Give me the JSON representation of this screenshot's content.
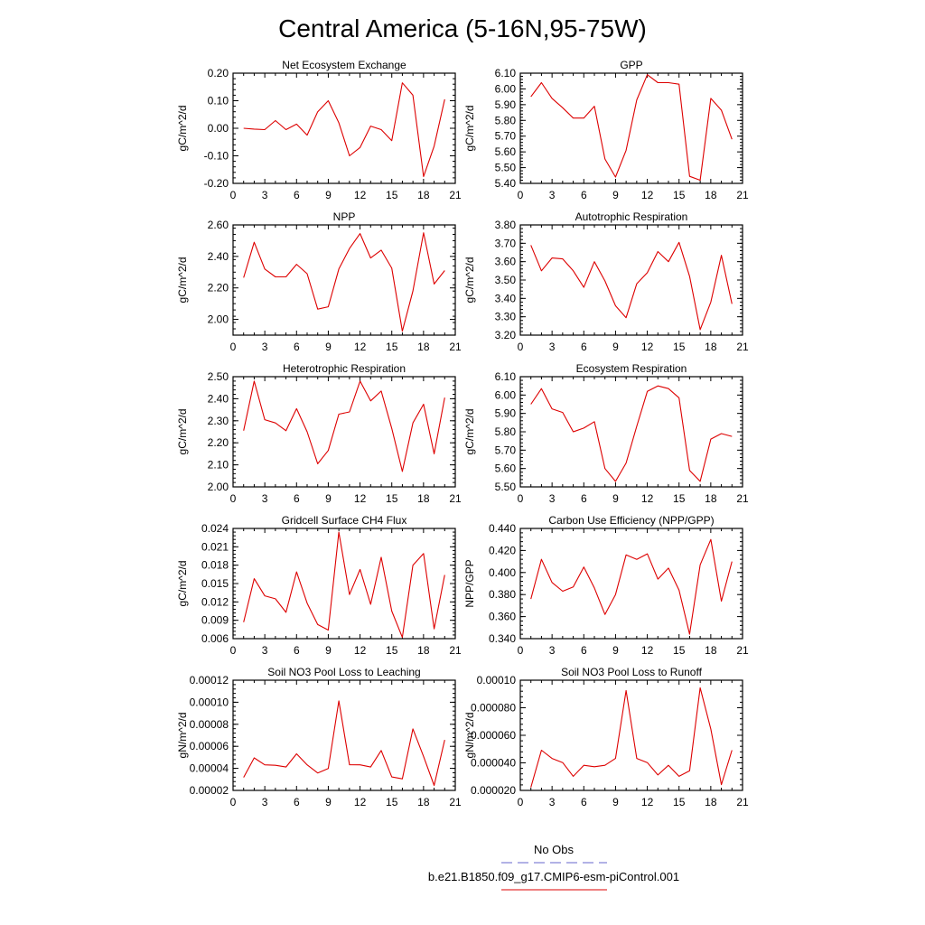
{
  "figure_title": "Central America (5-16N,95-75W)",
  "legend": {
    "obs_label": "No Obs",
    "obs_color": "#6666cc",
    "model_label": "b.e21.B1850.f09_g17.CMIP6-esm-piControl.001",
    "model_color": "#dd0000"
  },
  "chart_data": [
    {
      "type": "line",
      "title": "Net Ecosystem Exchange",
      "ylabel": "gC/m^2/d",
      "xlim": [
        0,
        21
      ],
      "ylim": [
        -0.2,
        0.2
      ],
      "xticks": [
        "0",
        "3",
        "6",
        "9",
        "12",
        "15",
        "18",
        "21"
      ],
      "yticks": [
        "-0.20",
        "-0.10",
        "0.00",
        "0.10",
        "0.20"
      ],
      "series": [
        {
          "x": [
            1,
            2,
            3,
            4,
            5,
            6,
            7,
            8,
            9,
            10,
            11,
            12,
            13,
            14,
            15,
            16,
            17,
            18,
            19,
            20
          ],
          "values": [
            0.0,
            -0.003,
            -0.005,
            0.028,
            -0.005,
            0.015,
            -0.025,
            0.06,
            0.1,
            0.02,
            -0.1,
            -0.07,
            0.008,
            -0.005,
            -0.045,
            0.165,
            0.12,
            -0.175,
            -0.065,
            0.105
          ]
        }
      ]
    },
    {
      "type": "line",
      "title": "GPP",
      "ylabel": "gC/m^2/d",
      "xlim": [
        0,
        21
      ],
      "ylim": [
        5.4,
        6.1
      ],
      "xticks": [
        "0",
        "3",
        "6",
        "9",
        "12",
        "15",
        "18",
        "21"
      ],
      "yticks": [
        "5.40",
        "5.50",
        "5.60",
        "5.70",
        "5.80",
        "5.90",
        "6.00",
        "6.10"
      ],
      "series": [
        {
          "x": [
            1,
            2,
            3,
            4,
            5,
            6,
            7,
            8,
            9,
            10,
            11,
            12,
            13,
            14,
            15,
            16,
            17,
            18,
            19,
            20
          ],
          "values": [
            5.95,
            6.04,
            5.94,
            5.88,
            5.815,
            5.815,
            5.89,
            5.555,
            5.44,
            5.61,
            5.93,
            6.09,
            6.04,
            6.04,
            6.03,
            5.445,
            5.42,
            5.94,
            5.865,
            5.68
          ]
        }
      ]
    },
    {
      "type": "line",
      "title": "NPP",
      "ylabel": "gC/m^2/d",
      "xlim": [
        0,
        21
      ],
      "ylim": [
        1.9,
        2.6
      ],
      "xticks": [
        "0",
        "3",
        "6",
        "9",
        "12",
        "15",
        "18",
        "21"
      ],
      "yticks": [
        "2.00",
        "2.20",
        "2.40",
        "2.60"
      ],
      "series": [
        {
          "x": [
            1,
            2,
            3,
            4,
            5,
            6,
            7,
            8,
            9,
            10,
            11,
            12,
            13,
            14,
            15,
            16,
            17,
            18,
            19,
            20
          ],
          "values": [
            2.265,
            2.49,
            2.32,
            2.27,
            2.27,
            2.35,
            2.29,
            2.065,
            2.08,
            2.32,
            2.45,
            2.545,
            2.39,
            2.44,
            2.325,
            1.925,
            2.18,
            2.55,
            2.225,
            2.31
          ]
        }
      ]
    },
    {
      "type": "line",
      "title": "Autotrophic Respiration",
      "ylabel": "gC/m^2/d",
      "xlim": [
        0,
        21
      ],
      "ylim": [
        3.2,
        3.8
      ],
      "xticks": [
        "0",
        "3",
        "6",
        "9",
        "12",
        "15",
        "18",
        "21"
      ],
      "yticks": [
        "3.20",
        "3.30",
        "3.40",
        "3.50",
        "3.60",
        "3.70",
        "3.80"
      ],
      "series": [
        {
          "x": [
            1,
            2,
            3,
            4,
            5,
            6,
            7,
            8,
            9,
            10,
            11,
            12,
            13,
            14,
            15,
            16,
            17,
            18,
            19,
            20
          ],
          "values": [
            3.69,
            3.55,
            3.62,
            3.615,
            3.55,
            3.46,
            3.6,
            3.495,
            3.36,
            3.295,
            3.48,
            3.54,
            3.655,
            3.6,
            3.705,
            3.52,
            3.23,
            3.38,
            3.635,
            3.37
          ]
        }
      ]
    },
    {
      "type": "line",
      "title": "Heterotrophic Respiration",
      "ylabel": "gC/m^2/d",
      "xlim": [
        0,
        21
      ],
      "ylim": [
        2.0,
        2.5
      ],
      "xticks": [
        "0",
        "3",
        "6",
        "9",
        "12",
        "15",
        "18",
        "21"
      ],
      "yticks": [
        "2.00",
        "2.10",
        "2.20",
        "2.30",
        "2.40",
        "2.50"
      ],
      "series": [
        {
          "x": [
            1,
            2,
            3,
            4,
            5,
            6,
            7,
            8,
            9,
            10,
            11,
            12,
            13,
            14,
            15,
            16,
            17,
            18,
            19,
            20
          ],
          "values": [
            2.255,
            2.48,
            2.305,
            2.29,
            2.255,
            2.355,
            2.25,
            2.105,
            2.165,
            2.33,
            2.34,
            2.48,
            2.39,
            2.435,
            2.265,
            2.07,
            2.29,
            2.375,
            2.15,
            2.405
          ]
        }
      ]
    },
    {
      "type": "line",
      "title": "Ecosystem Respiration",
      "ylabel": "gC/m^2/d",
      "xlim": [
        0,
        21
      ],
      "ylim": [
        5.5,
        6.1
      ],
      "xticks": [
        "0",
        "3",
        "6",
        "9",
        "12",
        "15",
        "18",
        "21"
      ],
      "yticks": [
        "5.50",
        "5.60",
        "5.70",
        "5.80",
        "5.90",
        "6.00",
        "6.10"
      ],
      "series": [
        {
          "x": [
            1,
            2,
            3,
            4,
            5,
            6,
            7,
            8,
            9,
            10,
            11,
            12,
            13,
            14,
            15,
            16,
            17,
            18,
            19,
            20
          ],
          "values": [
            5.95,
            6.035,
            5.925,
            5.905,
            5.8,
            5.82,
            5.855,
            5.6,
            5.53,
            5.63,
            5.83,
            6.02,
            6.05,
            6.035,
            5.985,
            5.59,
            5.53,
            5.76,
            5.79,
            5.775
          ]
        }
      ]
    },
    {
      "type": "line",
      "title": "Gridcell Surface CH4 Flux",
      "ylabel": "gC/m^2/d",
      "xlim": [
        0,
        21
      ],
      "ylim": [
        0.006,
        0.024
      ],
      "xticks": [
        "0",
        "3",
        "6",
        "9",
        "12",
        "15",
        "18",
        "21"
      ],
      "yticks": [
        "0.006",
        "0.009",
        "0.012",
        "0.015",
        "0.018",
        "0.021",
        "0.024"
      ],
      "series": [
        {
          "x": [
            1,
            2,
            3,
            4,
            5,
            6,
            7,
            8,
            9,
            10,
            11,
            12,
            13,
            14,
            15,
            16,
            17,
            18,
            19,
            20
          ],
          "values": [
            0.0087,
            0.0158,
            0.013,
            0.0125,
            0.0103,
            0.0169,
            0.0118,
            0.0083,
            0.0074,
            0.0234,
            0.0132,
            0.0173,
            0.0116,
            0.0193,
            0.0105,
            0.0062,
            0.018,
            0.0199,
            0.0076,
            0.0164
          ]
        }
      ]
    },
    {
      "type": "line",
      "title": "Carbon Use Efficiency (NPP/GPP)",
      "ylabel": "NPP/GPP",
      "xlim": [
        0,
        21
      ],
      "ylim": [
        0.34,
        0.44
      ],
      "xticks": [
        "0",
        "3",
        "6",
        "9",
        "12",
        "15",
        "18",
        "21"
      ],
      "yticks": [
        "0.340",
        "0.360",
        "0.380",
        "0.400",
        "0.420",
        "0.440"
      ],
      "series": [
        {
          "x": [
            1,
            2,
            3,
            4,
            5,
            6,
            7,
            8,
            9,
            10,
            11,
            12,
            13,
            14,
            15,
            16,
            17,
            18,
            19,
            20
          ],
          "values": [
            0.376,
            0.412,
            0.391,
            0.383,
            0.387,
            0.405,
            0.386,
            0.362,
            0.38,
            0.416,
            0.412,
            0.417,
            0.394,
            0.404,
            0.384,
            0.344,
            0.407,
            0.43,
            0.374,
            0.41
          ]
        }
      ]
    },
    {
      "type": "line",
      "title": "Soil NO3 Pool Loss to Leaching",
      "ylabel": "gN/m^2/d",
      "xlim": [
        0,
        21
      ],
      "ylim": [
        2e-05,
        0.00012
      ],
      "xticks": [
        "0",
        "3",
        "6",
        "9",
        "12",
        "15",
        "18",
        "21"
      ],
      "yticks": [
        "0.00002",
        "0.00004",
        "0.00006",
        "0.00008",
        "0.00010",
        "0.00012"
      ],
      "series": [
        {
          "x": [
            1,
            2,
            3,
            4,
            5,
            6,
            7,
            8,
            9,
            10,
            11,
            12,
            13,
            14,
            15,
            16,
            17,
            18,
            19,
            20
          ],
          "values": [
            3.18e-05,
            4.95e-05,
            4.32e-05,
            4.28e-05,
            4.12e-05,
            5.32e-05,
            4.32e-05,
            3.58e-05,
            3.98e-05,
            0.0001012,
            4.33e-05,
            4.32e-05,
            4.12e-05,
            5.62e-05,
            3.22e-05,
            3.05e-05,
            7.58e-05,
            5.08e-05,
            2.45e-05,
            6.58e-05
          ]
        }
      ]
    },
    {
      "type": "line",
      "title": "Soil NO3 Pool Loss to Runoff",
      "ylabel": "gN/m^2/d",
      "xlim": [
        0,
        21
      ],
      "ylim": [
        2e-05,
        0.0001
      ],
      "xticks": [
        "0",
        "3",
        "6",
        "9",
        "12",
        "15",
        "18",
        "21"
      ],
      "yticks": [
        "0.000020",
        "0.000040",
        "0.000060",
        "0.000080",
        "0.00010"
      ],
      "series": [
        {
          "x": [
            1,
            2,
            3,
            4,
            5,
            6,
            7,
            8,
            9,
            10,
            11,
            12,
            13,
            14,
            15,
            16,
            17,
            18,
            19,
            20
          ],
          "values": [
            2.22e-05,
            4.92e-05,
            4.32e-05,
            4.02e-05,
            3.02e-05,
            3.82e-05,
            3.72e-05,
            3.82e-05,
            4.32e-05,
            9.25e-05,
            4.32e-05,
            4.02e-05,
            3.12e-05,
            3.82e-05,
            3.02e-05,
            3.42e-05,
            9.45e-05,
            6.45e-05,
            2.42e-05,
            4.92e-05
          ]
        }
      ]
    }
  ]
}
